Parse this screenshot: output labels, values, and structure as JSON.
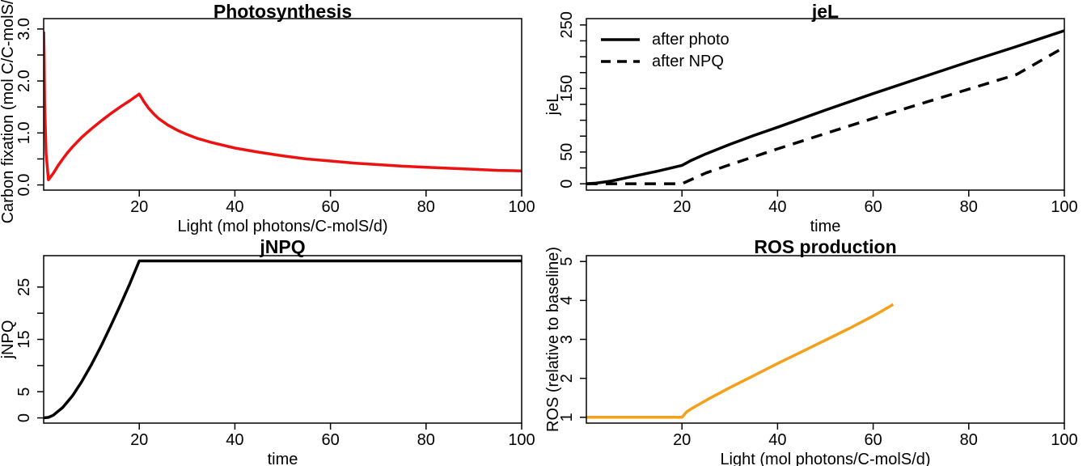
{
  "colors": {
    "red": "#ee1111",
    "orange": "#f5a01a",
    "black": "#000000"
  },
  "chart_data": [
    {
      "type": "line",
      "title": "Photosynthesis",
      "xlabel": "Light (mol photons/C-molS/d)",
      "ylabel": "Carbon fixation (mol C/C-molS/d)",
      "xlim": [
        0,
        100
      ],
      "ylim": [
        -0.1,
        3.2
      ],
      "xticks": [
        20,
        40,
        60,
        80,
        100
      ],
      "xtick_labels": [
        "20",
        "40",
        "60",
        "80",
        "100"
      ],
      "yticks": [
        0,
        0.5,
        1.0,
        1.5,
        2.0,
        2.5,
        3.0
      ],
      "ytick_labels": [
        "0.0",
        "",
        "1.0",
        "",
        "2.0",
        "",
        "3.0"
      ],
      "series": [
        {
          "color": "#ee1111",
          "style": "solid",
          "x": [
            0.02,
            0.1,
            0.2,
            0.5,
            1,
            2,
            3,
            4,
            5,
            6,
            8,
            10,
            12,
            14,
            16,
            18,
            20,
            21,
            22,
            23,
            24,
            26,
            28,
            30,
            32,
            35,
            40,
            45,
            50,
            55,
            60,
            65,
            70,
            75,
            80,
            85,
            90,
            95,
            100
          ],
          "y": [
            2.95,
            2.5,
            1.6,
            0.6,
            0.1,
            0.22,
            0.37,
            0.5,
            0.62,
            0.73,
            0.92,
            1.08,
            1.23,
            1.37,
            1.5,
            1.62,
            1.75,
            1.6,
            1.47,
            1.37,
            1.28,
            1.15,
            1.05,
            0.97,
            0.9,
            0.82,
            0.71,
            0.63,
            0.56,
            0.5,
            0.46,
            0.42,
            0.39,
            0.36,
            0.34,
            0.32,
            0.3,
            0.28,
            0.27
          ]
        }
      ]
    },
    {
      "type": "line",
      "title": "jeL",
      "xlabel": "time",
      "ylabel": "jeL",
      "xlim": [
        0,
        100
      ],
      "ylim": [
        -10,
        260
      ],
      "xticks": [
        20,
        40,
        60,
        80,
        100
      ],
      "xtick_labels": [
        "20",
        "40",
        "60",
        "80",
        "100"
      ],
      "yticks": [
        0,
        25,
        50,
        75,
        100,
        125,
        150,
        175,
        200,
        225,
        250
      ],
      "ytick_labels": [
        "0",
        "",
        "50",
        "",
        "",
        "",
        "150",
        "",
        "",
        "",
        "250"
      ],
      "legend": {
        "position": "top-left",
        "entries": [
          "after photo",
          "after NPQ"
        ]
      },
      "series": [
        {
          "name": "after photo",
          "color": "#000000",
          "style": "solid",
          "x": [
            0,
            2,
            5,
            10,
            15,
            20,
            22,
            25,
            30,
            35,
            40,
            50,
            60,
            70,
            80,
            90,
            100
          ],
          "y": [
            0,
            1,
            4,
            12,
            20,
            29,
            37,
            47,
            62,
            76,
            89,
            116,
            142,
            167,
            192,
            216,
            241
          ]
        },
        {
          "name": "after NPQ",
          "color": "#000000",
          "style": "dashed",
          "x": [
            0,
            5,
            10,
            15,
            20,
            25,
            30,
            40,
            50,
            60,
            70,
            80,
            90,
            100
          ],
          "y": [
            0,
            0,
            0,
            0,
            0,
            17,
            30,
            55,
            79,
            103,
            126,
            149,
            172,
            215
          ]
        }
      ]
    },
    {
      "type": "line",
      "title": "jNPQ",
      "xlabel": "time",
      "ylabel": "jNPQ",
      "xlim": [
        0,
        100
      ],
      "ylim": [
        -1,
        31
      ],
      "xticks": [
        20,
        40,
        60,
        80,
        100
      ],
      "xtick_labels": [
        "20",
        "40",
        "60",
        "80",
        "100"
      ],
      "yticks": [
        0,
        5,
        10,
        15,
        20,
        25
      ],
      "ytick_labels": [
        "0",
        "5",
        "",
        "15",
        "",
        "25"
      ],
      "series": [
        {
          "color": "#000000",
          "style": "solid",
          "x": [
            0,
            1,
            2,
            4,
            6,
            8,
            10,
            12,
            14,
            16,
            18,
            20,
            22,
            40,
            60,
            80,
            100
          ],
          "y": [
            0,
            0.1,
            0.5,
            2.0,
            4.2,
            7.0,
            10.2,
            13.7,
            17.5,
            21.5,
            25.6,
            30,
            30,
            30,
            30,
            30,
            30
          ]
        }
      ]
    },
    {
      "type": "line",
      "title": "ROS production",
      "xlabel": "Light (mol photons/C-molS/d)",
      "ylabel": "ROS (relative to baseline)",
      "xlim": [
        0,
        100
      ],
      "ylim": [
        0.85,
        5.15
      ],
      "xticks": [
        20,
        40,
        60,
        80,
        100
      ],
      "xtick_labels": [
        "20",
        "40",
        "60",
        "80",
        "100"
      ],
      "yticks": [
        1,
        2,
        3,
        4,
        5
      ],
      "ytick_labels": [
        "1",
        "2",
        "3",
        "4",
        "5"
      ],
      "series": [
        {
          "color": "#f5a01a",
          "style": "solid",
          "x": [
            0,
            5,
            10,
            15,
            20,
            21,
            22,
            24,
            26,
            30,
            35,
            40,
            45,
            50,
            55,
            60,
            62,
            64.2
          ],
          "y": [
            1,
            1,
            1,
            1,
            1,
            1.14,
            1.22,
            1.36,
            1.5,
            1.76,
            2.07,
            2.38,
            2.68,
            2.98,
            3.28,
            3.6,
            3.74,
            3.9
          ]
        }
      ]
    }
  ]
}
